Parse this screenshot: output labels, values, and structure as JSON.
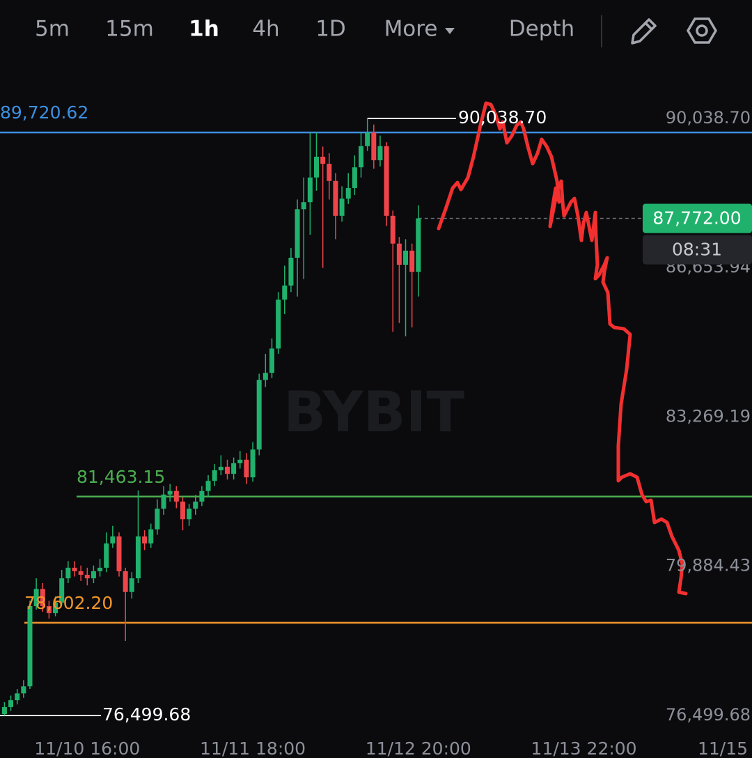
{
  "toolbar": {
    "intervals": [
      "5m",
      "15m",
      "1h",
      "4h",
      "1D"
    ],
    "active": "1h",
    "more": "More",
    "depth": "Depth"
  },
  "chart_data": {
    "type": "candlestick",
    "watermark": "BYBIT",
    "x": [
      -13,
      -12,
      -11,
      -10,
      -9,
      -8,
      -7,
      -6,
      -5,
      -4,
      -3,
      -2,
      -1,
      0,
      1,
      2,
      3,
      4,
      5,
      6,
      7,
      8,
      9,
      10,
      11,
      12,
      13,
      14,
      15,
      16,
      17,
      18,
      19,
      20,
      21,
      22,
      23,
      24,
      25,
      26,
      27,
      28,
      29,
      30,
      31,
      32,
      33,
      34,
      35,
      36,
      37,
      38,
      39,
      40,
      41,
      42,
      43,
      44,
      45,
      46,
      47,
      48,
      49,
      50,
      51,
      52
    ],
    "open": [
      76530,
      76690,
      76845,
      77000,
      77160,
      78980,
      79370,
      78980,
      78820,
      79060,
      79610,
      79850,
      79770,
      79690,
      79610,
      79770,
      79850,
      80400,
      80560,
      79770,
      79300,
      79610,
      80560,
      80400,
      80720,
      81190,
      81510,
      81590,
      81350,
      80950,
      81190,
      81350,
      81590,
      81820,
      82060,
      82140,
      81980,
      82220,
      82300,
      81900,
      82530,
      84110,
      84270,
      84820,
      85930,
      86250,
      86880,
      87980,
      88140,
      88700,
      89170,
      89010,
      88620,
      87830,
      88220,
      88460,
      88930,
      89410,
      89720,
      89090,
      89410,
      87830,
      87200,
      86720,
      87040,
      86560
    ],
    "high": [
      76800,
      76950,
      77100,
      77300,
      79100,
      79610,
      79500,
      79100,
      79200,
      79800,
      80000,
      80000,
      79900,
      79850,
      79900,
      80050,
      80650,
      80800,
      80650,
      79850,
      79750,
      81600,
      80700,
      80850,
      81400,
      81700,
      81750,
      81700,
      81450,
      81300,
      81500,
      81700,
      81950,
      82200,
      82400,
      82300,
      82350,
      82500,
      82450,
      82700,
      84250,
      84700,
      85050,
      86100,
      86700,
      87100,
      88200,
      88700,
      89720,
      89720,
      89400,
      89250,
      88800,
      88500,
      88800,
      89200,
      89720,
      90038.7,
      89900,
      89650,
      89500,
      87950,
      87350,
      87300,
      87200,
      88070
    ],
    "low": [
      76499.68,
      76600,
      76750,
      76900,
      77100,
      78900,
      78850,
      78700,
      78750,
      79000,
      79500,
      79650,
      79550,
      79450,
      79500,
      79650,
      79750,
      80300,
      79650,
      78190,
      79150,
      79500,
      80250,
      80300,
      80600,
      81050,
      81350,
      81200,
      80700,
      80800,
      81050,
      81250,
      81450,
      81700,
      81950,
      81850,
      81850,
      82100,
      81750,
      81800,
      82400,
      83950,
      84150,
      84700,
      85600,
      86100,
      86000,
      86400,
      87400,
      88400,
      86650,
      88200,
      87300,
      87700,
      88100,
      88300,
      88700,
      89300,
      88900,
      88950,
      87600,
      85200,
      85400,
      85100,
      85300,
      86000
    ],
    "close": [
      76690,
      76845,
      77000,
      77160,
      78980,
      79370,
      78980,
      78820,
      79060,
      79610,
      79850,
      79770,
      79690,
      79610,
      79770,
      79850,
      80400,
      80560,
      79770,
      79300,
      79610,
      80560,
      80400,
      80720,
      81190,
      81510,
      81590,
      81350,
      80950,
      81190,
      81350,
      81590,
      81820,
      82060,
      82140,
      81980,
      82220,
      82300,
      81900,
      82530,
      84110,
      84270,
      84820,
      85930,
      86250,
      86880,
      87980,
      88140,
      88700,
      89170,
      89010,
      88620,
      87830,
      88220,
      88460,
      88930,
      89410,
      89720,
      89090,
      89410,
      87830,
      87200,
      86720,
      87040,
      86560,
      87772
    ],
    "up_color": "#20b26c",
    "down_color": "#ef454a",
    "xlim": [
      -13.7,
      104.4
    ],
    "xticks": [
      {
        "value": 0,
        "label": "11/10 16:00"
      },
      {
        "value": 26,
        "label": "11/11 18:00"
      },
      {
        "value": 52,
        "label": "11/12 20:00"
      },
      {
        "value": 78,
        "label": "11/13 22:00"
      },
      {
        "value": 104,
        "label": "11/15"
      }
    ],
    "ylim": [
      76135.7,
      91144.6
    ],
    "yticks": [
      {
        "value": 76499.68,
        "label": "76,499.68"
      },
      {
        "value": 79884.43,
        "label": "79,884.43"
      },
      {
        "value": 83269.19,
        "label": "83,269.19"
      },
      {
        "value": 86653.94,
        "label": "86,653.94"
      },
      {
        "value": 90038.7,
        "label": "90,038.70"
      }
    ],
    "grid": true,
    "price_lines": [
      {
        "value": 89720.62,
        "label": "89,720.62",
        "color": "#3d8fe0"
      },
      {
        "value": 81463.15,
        "label": "81,463.15",
        "color": "#4cae4f"
      },
      {
        "value": 78602.2,
        "label": "78,602.20",
        "color": "#f0952c"
      }
    ],
    "high_marker": {
      "value": 90038.7,
      "label": "90,038.70"
    },
    "low_marker": {
      "value": 76499.68,
      "label": "76,499.68"
    },
    "last_price": {
      "value": 87772.0,
      "label": "87,772.00",
      "countdown": "08:31"
    }
  }
}
